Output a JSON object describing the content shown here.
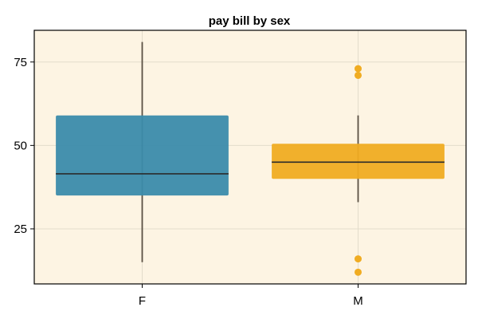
{
  "chart_data": {
    "type": "boxplot",
    "title": "pay bill by sex",
    "xlabel": "",
    "ylabel": "",
    "categories": [
      "F",
      "M"
    ],
    "ylim": [
      8.5,
      84.5
    ],
    "yticks": [
      25,
      50,
      75
    ],
    "grid": true,
    "background": "#fdf4e3",
    "boxes": [
      {
        "category": "F",
        "color": "#3b8bab",
        "whisker_low": 15,
        "q1": 35,
        "median": 41.5,
        "q3": 59,
        "whisker_high": 81,
        "outliers": []
      },
      {
        "category": "M",
        "color": "#f0ac22",
        "whisker_low": 33,
        "q1": 40,
        "median": 45,
        "q3": 50.5,
        "whisker_high": 59,
        "outliers": [
          73,
          71,
          16,
          12
        ]
      }
    ]
  }
}
